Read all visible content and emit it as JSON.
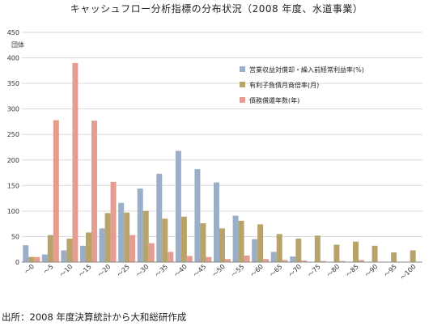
{
  "title": "キャッシュフロー分析指標の分布状況（2008 年度、水道事業）",
  "source_note": "出所：2008 年度決算統計から大和総研作成",
  "chart_data": {
    "type": "bar",
    "ylabel": "団体",
    "xlabel": "",
    "ylim": [
      0,
      450
    ],
    "yticks": [
      0,
      50,
      100,
      150,
      200,
      250,
      300,
      350,
      400,
      450
    ],
    "grid": true,
    "legend_position": "top-right",
    "categories": [
      "～0",
      "～5",
      "～10",
      "～15",
      "～20",
      "～25",
      "～30",
      "～35",
      "～40",
      "～45",
      "～50",
      "～55",
      "～60",
      "～65",
      "～70",
      "～75",
      "～80",
      "～85",
      "～90",
      "～95",
      "～100"
    ],
    "series": [
      {
        "name": "営業収益対償却・繰入前経常利益率(%)",
        "color": "#9aaec8",
        "values": [
          33,
          15,
          23,
          32,
          66,
          116,
          144,
          173,
          218,
          182,
          156,
          91,
          45,
          20,
          11,
          null,
          null,
          null,
          null,
          null,
          null
        ]
      },
      {
        "name": "有利子負債月商倍率(月)",
        "color": "#b8a36a",
        "values": [
          10,
          53,
          46,
          58,
          96,
          97,
          100,
          85,
          89,
          76,
          66,
          81,
          74,
          55,
          46,
          52,
          34,
          40,
          32,
          19,
          23
        ]
      },
      {
        "name": "債務償還年数(年)",
        "color": "#e69d91",
        "values": [
          10,
          278,
          390,
          277,
          157,
          53,
          37,
          20,
          12,
          10,
          6,
          13,
          6,
          4,
          3,
          2,
          2,
          4,
          0,
          0,
          0
        ]
      }
    ]
  }
}
